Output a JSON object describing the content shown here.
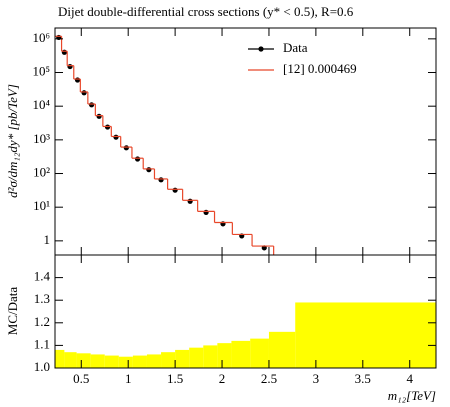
{
  "chart_data": [
    {
      "type": "scatter",
      "title": "Dijet double-differential cross sections (y* < 0.5), R=0.6",
      "ylabel": "d²σ/dm₁₂dy* [pb/TeV]",
      "ylog": true,
      "xlim": [
        0.22,
        4.28
      ],
      "ylim": [
        0.38,
        2100000
      ],
      "yticks": [
        {
          "value": 1,
          "label": "1"
        },
        {
          "value": 10,
          "label": "10¹"
        },
        {
          "value": 100,
          "label": "10²"
        },
        {
          "value": 1000,
          "label": "10³"
        },
        {
          "value": 10000,
          "label": "10⁴"
        },
        {
          "value": 100000,
          "label": "10⁵"
        },
        {
          "value": 1000000,
          "label": "10⁶"
        }
      ],
      "legend": "upper right",
      "series": [
        {
          "name": "Data",
          "color": "#000000",
          "x": [
            0.26,
            0.32,
            0.38,
            0.46,
            0.53,
            0.61,
            0.69,
            0.78,
            0.87,
            0.98,
            1.1,
            1.22,
            1.35,
            1.5,
            1.66,
            1.83,
            2.01,
            2.21,
            2.45
          ],
          "values": [
            1100000,
            400000,
            150000,
            60000,
            25000,
            11000,
            5000,
            2400,
            1200,
            580,
            270,
            130,
            65,
            32,
            15,
            7,
            3.2,
            1.4,
            0.62
          ]
        },
        {
          "name": "[12] 0.000469",
          "color": "#e8472a",
          "bins": [
            0.22,
            0.29,
            0.35,
            0.42,
            0.49,
            0.57,
            0.65,
            0.73,
            0.82,
            0.92,
            1.04,
            1.16,
            1.28,
            1.42,
            1.58,
            1.74,
            1.92,
            2.11,
            2.32,
            2.55
          ],
          "values": [
            1190000,
            430000,
            160000,
            64000,
            26500,
            11600,
            5250,
            2500,
            1260,
            610,
            285,
            137,
            69,
            34,
            16,
            7.5,
            3.5,
            1.55,
            0.7
          ]
        }
      ]
    },
    {
      "type": "histogram",
      "ylabel": "MC/Data",
      "xlabel": "m₁₂[TeV]",
      "color": "#ffff00",
      "xlim": [
        0.22,
        4.28
      ],
      "xticks": [
        0.5,
        1,
        1.5,
        2,
        2.5,
        3,
        3.5,
        4
      ],
      "ylim": [
        1.0,
        1.5
      ],
      "yticks": [
        {
          "value": 1,
          "label": "1.0"
        },
        1.1,
        1.2,
        1.3,
        1.4
      ],
      "bins": [
        0.22,
        0.32,
        0.45,
        0.6,
        0.75,
        0.9,
        1.05,
        1.2,
        1.35,
        1.5,
        1.65,
        1.8,
        1.95,
        2.1,
        2.3,
        2.5,
        2.78,
        4.28
      ],
      "values": [
        1.08,
        1.07,
        1.065,
        1.06,
        1.055,
        1.05,
        1.055,
        1.06,
        1.07,
        1.08,
        1.09,
        1.1,
        1.11,
        1.12,
        1.13,
        1.16,
        1.29
      ]
    }
  ]
}
